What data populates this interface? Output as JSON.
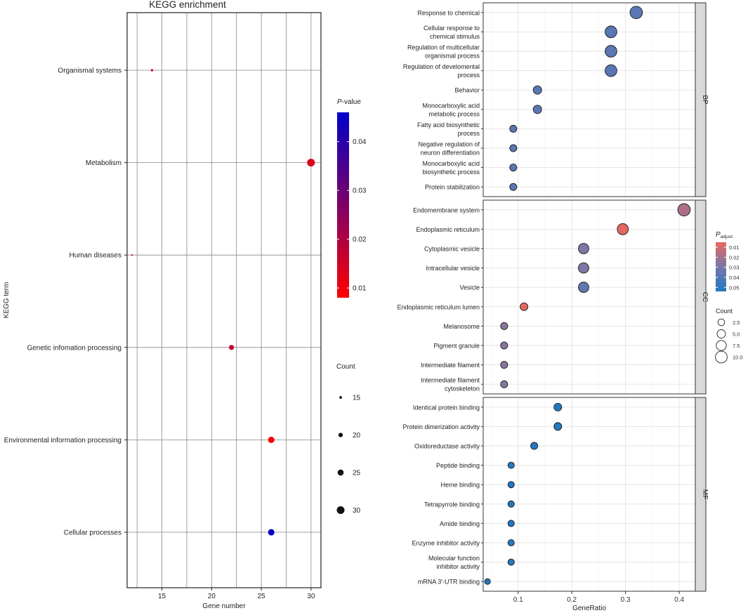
{
  "chart_data": [
    {
      "type": "scatter",
      "title": "KEGG enrichment",
      "xlabel": "Gene number",
      "ylabel": "KEGG term",
      "xlim": [
        11.5,
        31
      ],
      "xticks": [
        15,
        20,
        25,
        30
      ],
      "categories": [
        "Organismal systems",
        "Metabolism",
        "Human diseases",
        "Genetic infomation processing",
        "Environmental information processing",
        "Cellular processes"
      ],
      "points": [
        {
          "term": "Organismal systems",
          "x": 14,
          "count": 14,
          "pvalue": 0.015
        },
        {
          "term": "Metabolism",
          "x": 30,
          "count": 30,
          "pvalue": 0.013
        },
        {
          "term": "Human diseases",
          "x": 12,
          "count": 12,
          "pvalue": 0.01
        },
        {
          "term": "Genetic infomation processing",
          "x": 22,
          "count": 22,
          "pvalue": 0.017
        },
        {
          "term": "Environmental information processing",
          "x": 26,
          "count": 26,
          "pvalue": 0.009
        },
        {
          "term": "Cellular processes",
          "x": 26,
          "count": 26,
          "pvalue": 0.045
        }
      ],
      "color_legend": {
        "title_italic": "P",
        "title_rest": "-value",
        "ticks": [
          "0.01",
          "0.02",
          "0.03",
          "0.04"
        ],
        "tick_values": [
          0.01,
          0.02,
          0.03,
          0.04
        ],
        "range": [
          0.008,
          0.046
        ],
        "low_color": "#ff0000",
        "high_color": "#0000cc"
      },
      "size_legend": {
        "title": "Count",
        "labels": [
          "15",
          "20",
          "25",
          "30"
        ],
        "values": [
          15,
          20,
          25,
          30
        ]
      },
      "grid": true
    },
    {
      "type": "scatter",
      "xlabel": "GeneRatio",
      "xlim": [
        0.035,
        0.43
      ],
      "xticks": [
        0.1,
        0.2,
        0.3,
        0.4
      ],
      "xtick_labels": [
        "0.1",
        "0.2",
        "0.3",
        "0.4"
      ],
      "panels": [
        {
          "strip": "BP",
          "terms": [
            {
              "label": [
                "Response to chemical"
              ],
              "ratio": 0.32,
              "count": 11,
              "padj": 0.038
            },
            {
              "label": [
                "Cellular response to",
                "chemical stimulus"
              ],
              "ratio": 0.273,
              "count": 10,
              "padj": 0.038
            },
            {
              "label": [
                "Regulation of multicellular",
                "organismal process"
              ],
              "ratio": 0.273,
              "count": 10,
              "padj": 0.038
            },
            {
              "label": [
                "Regulation of develomental",
                "process"
              ],
              "ratio": 0.273,
              "count": 10,
              "padj": 0.038
            },
            {
              "label": [
                "Behavior"
              ],
              "ratio": 0.136,
              "count": 5,
              "padj": 0.038
            },
            {
              "label": [
                "Monocarboxylic acid",
                "metabolic process"
              ],
              "ratio": 0.136,
              "count": 5,
              "padj": 0.038
            },
            {
              "label": [
                "Fatty acid biosynthetic",
                "process"
              ],
              "ratio": 0.091,
              "count": 3,
              "padj": 0.038
            },
            {
              "label": [
                "Negative regulation of",
                "neuron differentiation"
              ],
              "ratio": 0.091,
              "count": 3,
              "padj": 0.038
            },
            {
              "label": [
                "Monocarboxylic acid",
                "biosynthetic process"
              ],
              "ratio": 0.091,
              "count": 3,
              "padj": 0.038
            },
            {
              "label": [
                "Protein stabilization"
              ],
              "ratio": 0.091,
              "count": 3,
              "padj": 0.038
            }
          ]
        },
        {
          "strip": "CC",
          "terms": [
            {
              "label": [
                "Endomembrane system"
              ],
              "ratio": 0.409,
              "count": 11,
              "padj": 0.018
            },
            {
              "label": [
                "Endoplasmic reticulum"
              ],
              "ratio": 0.295,
              "count": 9,
              "padj": 0.006
            },
            {
              "label": [
                "Cytoplasmic vesicle"
              ],
              "ratio": 0.222,
              "count": 8,
              "padj": 0.028
            },
            {
              "label": [
                "Intracellular vesicle"
              ],
              "ratio": 0.222,
              "count": 8,
              "padj": 0.028
            },
            {
              "label": [
                "Vesicle"
              ],
              "ratio": 0.222,
              "count": 8,
              "padj": 0.035
            },
            {
              "label": [
                "Endoplasmic reticulum lumen"
              ],
              "ratio": 0.111,
              "count": 4,
              "padj": 0.006
            },
            {
              "label": [
                "Melanosome"
              ],
              "ratio": 0.074,
              "count": 3,
              "padj": 0.026
            },
            {
              "label": [
                "Pigment granule"
              ],
              "ratio": 0.074,
              "count": 3,
              "padj": 0.026
            },
            {
              "label": [
                "Intermediate filament"
              ],
              "ratio": 0.074,
              "count": 3,
              "padj": 0.026
            },
            {
              "label": [
                "Intermediate filament",
                "cytoskeleton"
              ],
              "ratio": 0.074,
              "count": 3,
              "padj": 0.026
            }
          ]
        },
        {
          "strip": "MF",
          "terms": [
            {
              "label": [
                "Identical protein binding"
              ],
              "ratio": 0.174,
              "count": 4,
              "padj": 0.053
            },
            {
              "label": [
                "Protein dimerization activity"
              ],
              "ratio": 0.174,
              "count": 4,
              "padj": 0.053
            },
            {
              "label": [
                "Oxidoreductase activity"
              ],
              "ratio": 0.13,
              "count": 3,
              "padj": 0.053
            },
            {
              "label": [
                "Peptide binding"
              ],
              "ratio": 0.087,
              "count": 2,
              "padj": 0.053
            },
            {
              "label": [
                "Heme binding"
              ],
              "ratio": 0.087,
              "count": 2,
              "padj": 0.053
            },
            {
              "label": [
                "Tetrapyrrole binding"
              ],
              "ratio": 0.087,
              "count": 2,
              "padj": 0.053
            },
            {
              "label": [
                "Amide binding"
              ],
              "ratio": 0.087,
              "count": 2,
              "padj": 0.053
            },
            {
              "label": [
                "Enzyme inhibitor activity"
              ],
              "ratio": 0.087,
              "count": 2,
              "padj": 0.053
            },
            {
              "label": [
                "Molecular function",
                "inhibitor activity"
              ],
              "ratio": 0.087,
              "count": 2,
              "padj": 0.053
            },
            {
              "label": [
                "mRNA 3'-UTR binding"
              ],
              "ratio": 0.043,
              "count": 1,
              "padj": 0.053
            }
          ]
        }
      ],
      "color_legend": {
        "title_main": "P",
        "title_sub": "adjust",
        "ticks": [
          "0.01",
          "0.02",
          "0.03",
          "0.04",
          "0.05"
        ],
        "tick_values": [
          0.01,
          0.02,
          0.03,
          0.04,
          0.05
        ],
        "range": [
          0.005,
          0.054
        ],
        "low_color": "#e8665f",
        "mid_color": "#7777aa",
        "high_color": "#2078c0"
      },
      "size_legend": {
        "title": "Count",
        "labels": [
          "2.5",
          "5.0",
          "7.5",
          "10.0"
        ],
        "values": [
          2.5,
          5.0,
          7.5,
          10.0
        ]
      },
      "grid": true
    }
  ]
}
